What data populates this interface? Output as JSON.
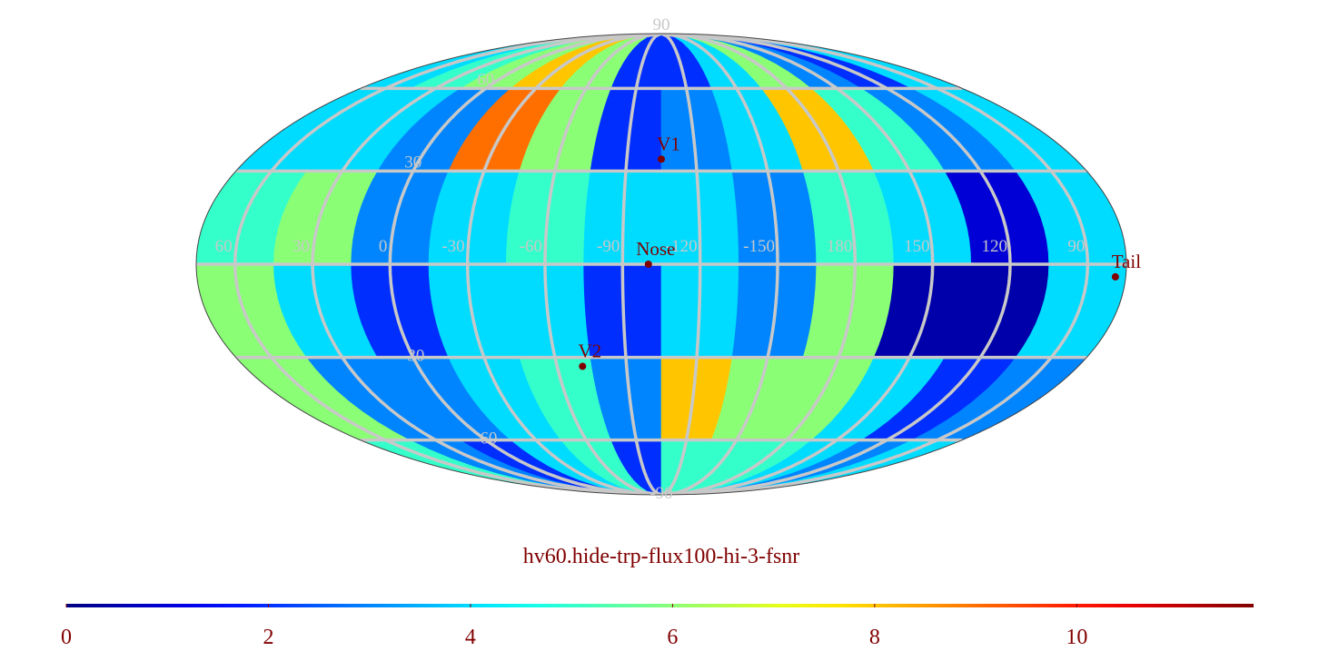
{
  "title": "hv60.hide-trp-flux100-hi-3-fsnr",
  "map": {
    "type": "mollweide",
    "center_lon": -105,
    "lon_edges": [
      75,
      45,
      15,
      -15,
      -45,
      -75,
      -105,
      -135,
      -165,
      -195,
      -225,
      -255,
      -285
    ],
    "lat_edges": [
      90,
      60,
      30,
      0,
      -30,
      -60,
      -90
    ],
    "values": [
      [
        4,
        5,
        6,
        8,
        6,
        2,
        2,
        4,
        6,
        3,
        2,
        4
      ],
      [
        4,
        4,
        3,
        9,
        6,
        2,
        3,
        4,
        8,
        5,
        3,
        4
      ],
      [
        5,
        6,
        3,
        4,
        5,
        4,
        4,
        3,
        5,
        4,
        1,
        4
      ],
      [
        6,
        4,
        2,
        4,
        4,
        2,
        4,
        3,
        6,
        0.5,
        0.5,
        4
      ],
      [
        6,
        3,
        3,
        4,
        5,
        3,
        8,
        6,
        6,
        4,
        2,
        3
      ],
      [
        5,
        3,
        2,
        4,
        5,
        2,
        5,
        5,
        5,
        4,
        3,
        4
      ]
    ],
    "grid_color": "#c8c8c8",
    "lat_labels": [
      90,
      60,
      30,
      -30,
      -60,
      -90
    ],
    "lon_labels": [
      60,
      30,
      0,
      -30,
      -60,
      -90,
      -120,
      -150,
      180,
      150,
      120,
      90
    ]
  },
  "markers": [
    {
      "label": "V1",
      "lon": -105,
      "lat": 34
    },
    {
      "label": "Nose",
      "lon": -100,
      "lat": 0
    },
    {
      "label": "V2",
      "lon": -71,
      "lat": -33
    },
    {
      "label": "Tail",
      "lon": 79,
      "lat": -4
    }
  ],
  "colorbar": {
    "lim": [
      0,
      11.75
    ],
    "ticks": [
      0,
      2,
      4,
      6,
      8,
      10
    ]
  }
}
